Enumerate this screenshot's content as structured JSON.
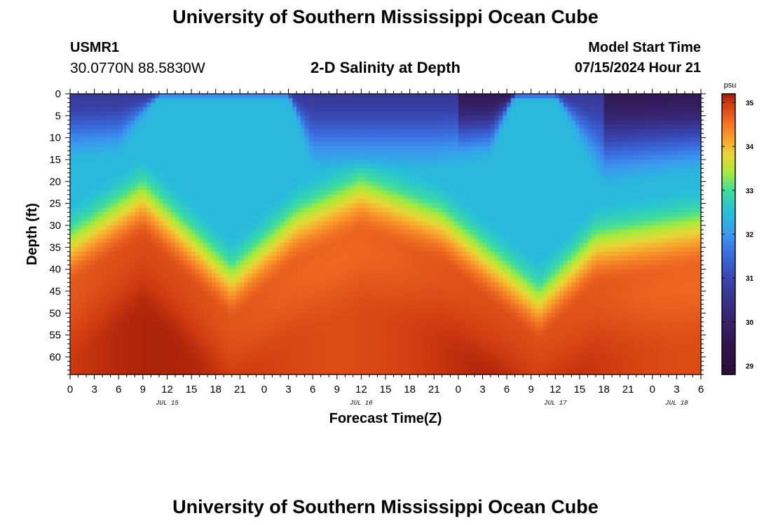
{
  "header": {
    "title": "University of Southern Mississippi Ocean Cube",
    "station": "USMR1",
    "coordinates": "30.0770N  88.5830W",
    "subtitle": "2-D Salinity at Depth",
    "model_start_label": "Model Start Time",
    "model_start_value": "07/15/2024 Hour 21"
  },
  "footer": {
    "title": "University of Southern Mississippi Ocean Cube"
  },
  "chart_data": {
    "type": "heatmap",
    "title": "2-D Salinity at Depth",
    "xlabel": "Forecast Time(Z)",
    "ylabel": "Depth (ft)",
    "xlim": [
      0,
      78
    ],
    "ylim": [
      0,
      64
    ],
    "x_ticks": [
      {
        "hour": 0,
        "label": "0"
      },
      {
        "hour": 3,
        "label": "3"
      },
      {
        "hour": 6,
        "label": "6"
      },
      {
        "hour": 9,
        "label": "9"
      },
      {
        "hour": 12,
        "label": "12"
      },
      {
        "hour": 15,
        "label": "15"
      },
      {
        "hour": 18,
        "label": "18"
      },
      {
        "hour": 21,
        "label": "21"
      },
      {
        "hour": 24,
        "label": "0"
      },
      {
        "hour": 27,
        "label": "3"
      },
      {
        "hour": 30,
        "label": "6"
      },
      {
        "hour": 33,
        "label": "9"
      },
      {
        "hour": 36,
        "label": "12"
      },
      {
        "hour": 39,
        "label": "15"
      },
      {
        "hour": 42,
        "label": "18"
      },
      {
        "hour": 45,
        "label": "21"
      },
      {
        "hour": 48,
        "label": "0"
      },
      {
        "hour": 51,
        "label": "3"
      },
      {
        "hour": 54,
        "label": "6"
      },
      {
        "hour": 57,
        "label": "9"
      },
      {
        "hour": 60,
        "label": "12"
      },
      {
        "hour": 63,
        "label": "15"
      },
      {
        "hour": 66,
        "label": "18"
      },
      {
        "hour": 69,
        "label": "21"
      },
      {
        "hour": 72,
        "label": "0"
      },
      {
        "hour": 75,
        "label": "3"
      },
      {
        "hour": 78,
        "label": "6"
      }
    ],
    "date_labels": [
      {
        "hour": 12,
        "label": "JUL 15"
      },
      {
        "hour": 36,
        "label": "JUL 16"
      },
      {
        "hour": 60,
        "label": "JUL 17"
      },
      {
        "hour": 75,
        "label": "JUL 18"
      }
    ],
    "y_ticks": [
      0,
      5,
      10,
      15,
      20,
      25,
      30,
      35,
      40,
      45,
      50,
      55,
      60
    ],
    "colorbar": {
      "unit": "psu",
      "range": [
        28.8,
        35.2
      ],
      "ticks": [
        29,
        30,
        31,
        32,
        33,
        34,
        35
      ],
      "stops": [
        {
          "v": 28.8,
          "c": "#2a0f35"
        },
        {
          "v": 29.5,
          "c": "#30154d"
        },
        {
          "v": 30.3,
          "c": "#382a7c"
        },
        {
          "v": 31.0,
          "c": "#3846b0"
        },
        {
          "v": 31.6,
          "c": "#3a6ee0"
        },
        {
          "v": 32.0,
          "c": "#3a9aef"
        },
        {
          "v": 32.5,
          "c": "#27c0d8"
        },
        {
          "v": 33.0,
          "c": "#3fdd9c"
        },
        {
          "v": 33.4,
          "c": "#a5eb3c"
        },
        {
          "v": 33.8,
          "c": "#e8d735"
        },
        {
          "v": 34.2,
          "c": "#f9a02c"
        },
        {
          "v": 34.6,
          "c": "#ef6a22"
        },
        {
          "v": 35.0,
          "c": "#cf3a10"
        },
        {
          "v": 35.2,
          "c": "#a01c08"
        }
      ]
    },
    "field_description_values": {
      "surface_min_psu": 29.0,
      "bottom_max_psu": 35.2
    },
    "series": [
      {
        "name": "thermocline_depth_ft",
        "hours": [
          0,
          9,
          20,
          28,
          36,
          46,
          58,
          65,
          78
        ],
        "values": [
          32,
          21,
          40,
          27,
          20,
          27,
          45,
          32,
          28
        ]
      },
      {
        "name": "surface_fresh_layer_bottom_ft",
        "hours": [
          0,
          6,
          11,
          27,
          30,
          45,
          52,
          55,
          60,
          66,
          78
        ],
        "values": [
          14,
          13,
          1,
          1,
          16,
          16,
          14,
          1,
          1,
          20,
          17
        ]
      }
    ]
  }
}
